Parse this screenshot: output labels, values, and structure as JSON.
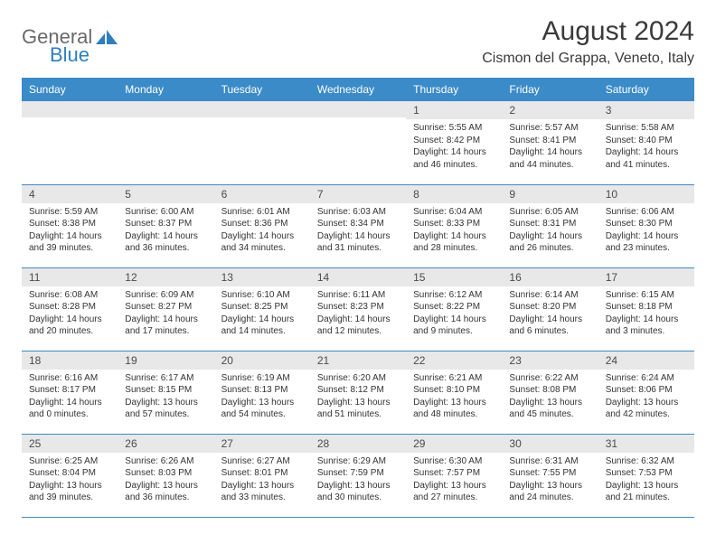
{
  "logo": {
    "text_gray": "General",
    "text_blue": "Blue",
    "icon_color": "#2f7ebf"
  },
  "header": {
    "month_title": "August 2024",
    "location": "Cismon del Grappa, Veneto, Italy"
  },
  "colors": {
    "header_bg": "#3b8bc8",
    "header_fg": "#ffffff",
    "daynum_bg": "#e8e8e8",
    "border": "#3b8bc8",
    "text": "#333333"
  },
  "weekdays": [
    "Sunday",
    "Monday",
    "Tuesday",
    "Wednesday",
    "Thursday",
    "Friday",
    "Saturday"
  ],
  "weeks": [
    [
      {
        "n": "",
        "sr": "",
        "ss": "",
        "dl": ""
      },
      {
        "n": "",
        "sr": "",
        "ss": "",
        "dl": ""
      },
      {
        "n": "",
        "sr": "",
        "ss": "",
        "dl": ""
      },
      {
        "n": "",
        "sr": "",
        "ss": "",
        "dl": ""
      },
      {
        "n": "1",
        "sr": "Sunrise: 5:55 AM",
        "ss": "Sunset: 8:42 PM",
        "dl": "Daylight: 14 hours and 46 minutes."
      },
      {
        "n": "2",
        "sr": "Sunrise: 5:57 AM",
        "ss": "Sunset: 8:41 PM",
        "dl": "Daylight: 14 hours and 44 minutes."
      },
      {
        "n": "3",
        "sr": "Sunrise: 5:58 AM",
        "ss": "Sunset: 8:40 PM",
        "dl": "Daylight: 14 hours and 41 minutes."
      }
    ],
    [
      {
        "n": "4",
        "sr": "Sunrise: 5:59 AM",
        "ss": "Sunset: 8:38 PM",
        "dl": "Daylight: 14 hours and 39 minutes."
      },
      {
        "n": "5",
        "sr": "Sunrise: 6:00 AM",
        "ss": "Sunset: 8:37 PM",
        "dl": "Daylight: 14 hours and 36 minutes."
      },
      {
        "n": "6",
        "sr": "Sunrise: 6:01 AM",
        "ss": "Sunset: 8:36 PM",
        "dl": "Daylight: 14 hours and 34 minutes."
      },
      {
        "n": "7",
        "sr": "Sunrise: 6:03 AM",
        "ss": "Sunset: 8:34 PM",
        "dl": "Daylight: 14 hours and 31 minutes."
      },
      {
        "n": "8",
        "sr": "Sunrise: 6:04 AM",
        "ss": "Sunset: 8:33 PM",
        "dl": "Daylight: 14 hours and 28 minutes."
      },
      {
        "n": "9",
        "sr": "Sunrise: 6:05 AM",
        "ss": "Sunset: 8:31 PM",
        "dl": "Daylight: 14 hours and 26 minutes."
      },
      {
        "n": "10",
        "sr": "Sunrise: 6:06 AM",
        "ss": "Sunset: 8:30 PM",
        "dl": "Daylight: 14 hours and 23 minutes."
      }
    ],
    [
      {
        "n": "11",
        "sr": "Sunrise: 6:08 AM",
        "ss": "Sunset: 8:28 PM",
        "dl": "Daylight: 14 hours and 20 minutes."
      },
      {
        "n": "12",
        "sr": "Sunrise: 6:09 AM",
        "ss": "Sunset: 8:27 PM",
        "dl": "Daylight: 14 hours and 17 minutes."
      },
      {
        "n": "13",
        "sr": "Sunrise: 6:10 AM",
        "ss": "Sunset: 8:25 PM",
        "dl": "Daylight: 14 hours and 14 minutes."
      },
      {
        "n": "14",
        "sr": "Sunrise: 6:11 AM",
        "ss": "Sunset: 8:23 PM",
        "dl": "Daylight: 14 hours and 12 minutes."
      },
      {
        "n": "15",
        "sr": "Sunrise: 6:12 AM",
        "ss": "Sunset: 8:22 PM",
        "dl": "Daylight: 14 hours and 9 minutes."
      },
      {
        "n": "16",
        "sr": "Sunrise: 6:14 AM",
        "ss": "Sunset: 8:20 PM",
        "dl": "Daylight: 14 hours and 6 minutes."
      },
      {
        "n": "17",
        "sr": "Sunrise: 6:15 AM",
        "ss": "Sunset: 8:18 PM",
        "dl": "Daylight: 14 hours and 3 minutes."
      }
    ],
    [
      {
        "n": "18",
        "sr": "Sunrise: 6:16 AM",
        "ss": "Sunset: 8:17 PM",
        "dl": "Daylight: 14 hours and 0 minutes."
      },
      {
        "n": "19",
        "sr": "Sunrise: 6:17 AM",
        "ss": "Sunset: 8:15 PM",
        "dl": "Daylight: 13 hours and 57 minutes."
      },
      {
        "n": "20",
        "sr": "Sunrise: 6:19 AM",
        "ss": "Sunset: 8:13 PM",
        "dl": "Daylight: 13 hours and 54 minutes."
      },
      {
        "n": "21",
        "sr": "Sunrise: 6:20 AM",
        "ss": "Sunset: 8:12 PM",
        "dl": "Daylight: 13 hours and 51 minutes."
      },
      {
        "n": "22",
        "sr": "Sunrise: 6:21 AM",
        "ss": "Sunset: 8:10 PM",
        "dl": "Daylight: 13 hours and 48 minutes."
      },
      {
        "n": "23",
        "sr": "Sunrise: 6:22 AM",
        "ss": "Sunset: 8:08 PM",
        "dl": "Daylight: 13 hours and 45 minutes."
      },
      {
        "n": "24",
        "sr": "Sunrise: 6:24 AM",
        "ss": "Sunset: 8:06 PM",
        "dl": "Daylight: 13 hours and 42 minutes."
      }
    ],
    [
      {
        "n": "25",
        "sr": "Sunrise: 6:25 AM",
        "ss": "Sunset: 8:04 PM",
        "dl": "Daylight: 13 hours and 39 minutes."
      },
      {
        "n": "26",
        "sr": "Sunrise: 6:26 AM",
        "ss": "Sunset: 8:03 PM",
        "dl": "Daylight: 13 hours and 36 minutes."
      },
      {
        "n": "27",
        "sr": "Sunrise: 6:27 AM",
        "ss": "Sunset: 8:01 PM",
        "dl": "Daylight: 13 hours and 33 minutes."
      },
      {
        "n": "28",
        "sr": "Sunrise: 6:29 AM",
        "ss": "Sunset: 7:59 PM",
        "dl": "Daylight: 13 hours and 30 minutes."
      },
      {
        "n": "29",
        "sr": "Sunrise: 6:30 AM",
        "ss": "Sunset: 7:57 PM",
        "dl": "Daylight: 13 hours and 27 minutes."
      },
      {
        "n": "30",
        "sr": "Sunrise: 6:31 AM",
        "ss": "Sunset: 7:55 PM",
        "dl": "Daylight: 13 hours and 24 minutes."
      },
      {
        "n": "31",
        "sr": "Sunrise: 6:32 AM",
        "ss": "Sunset: 7:53 PM",
        "dl": "Daylight: 13 hours and 21 minutes."
      }
    ]
  ]
}
